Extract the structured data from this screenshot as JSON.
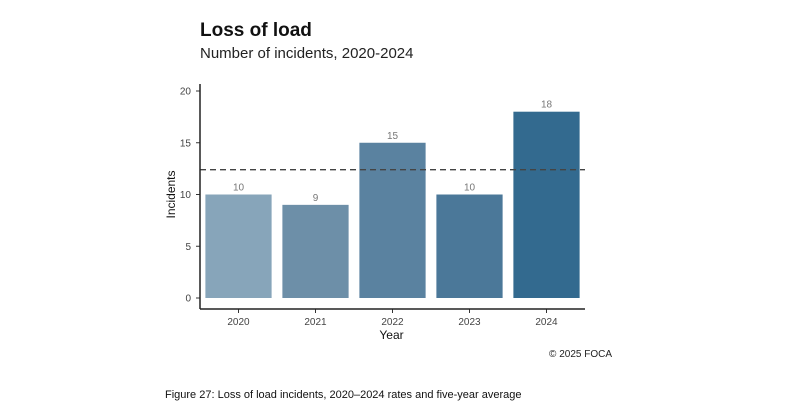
{
  "chart_data": {
    "type": "bar",
    "title": "Loss of load",
    "subtitle": "Number of incidents, 2020-2024",
    "categories": [
      "2020",
      "2021",
      "2022",
      "2023",
      "2024"
    ],
    "values": [
      10,
      9,
      15,
      10,
      18
    ],
    "data_labels": [
      "10",
      "9",
      "15",
      "10",
      "18"
    ],
    "xlabel": "Year",
    "ylabel": "Incidents",
    "ylim": [
      0,
      20
    ],
    "yticks": [
      "0",
      "5",
      "10",
      "15",
      "20"
    ],
    "reference_line": {
      "value": 12.4,
      "style": "dashed"
    },
    "grid": false,
    "legend": "none",
    "bar_colors": [
      "#87a5ba",
      "#6d8fa8",
      "#5a82a0",
      "#4b7899",
      "#336a8f"
    ],
    "reference_line_color": "#444444"
  },
  "credit": "© 2025 FOCA",
  "caption": "Figure 27: Loss of load incidents, 2020–2024 rates and five-year average"
}
